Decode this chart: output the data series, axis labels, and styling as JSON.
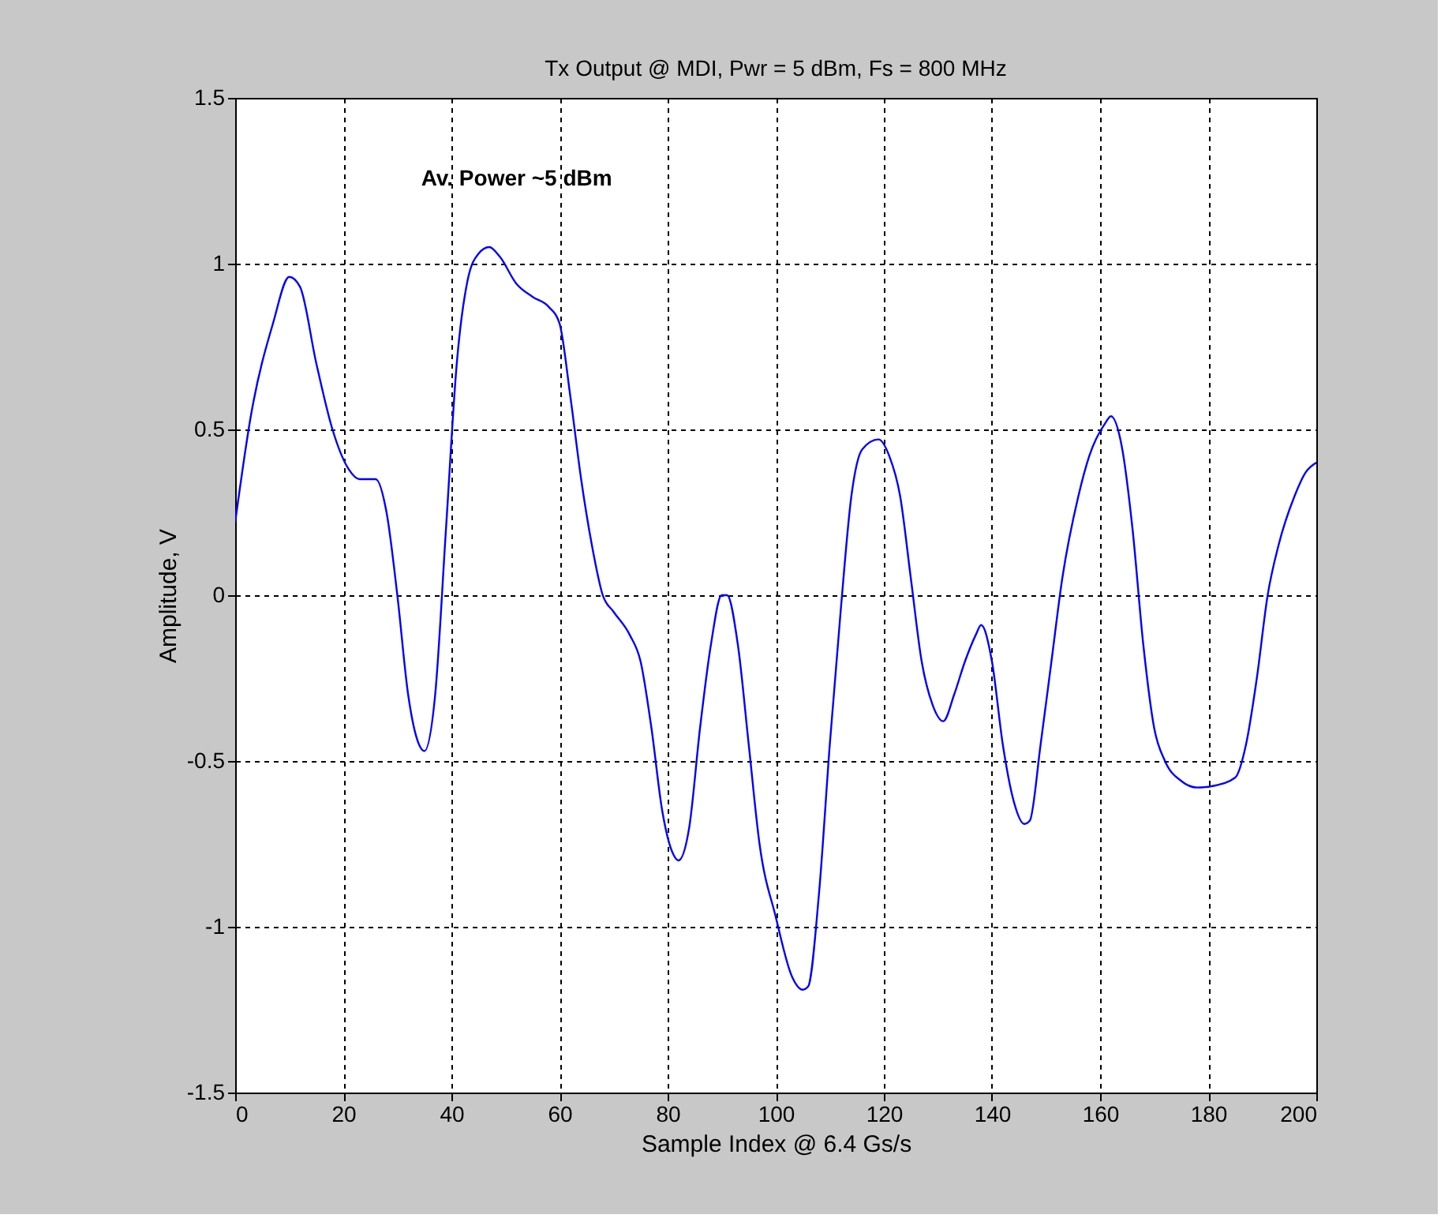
{
  "chart_data": {
    "type": "line",
    "title": "Tx Output @ MDI, Pwr = 5 dBm, Fs = 800 MHz",
    "xlabel": "Sample Index @ 6.4 Gs/s",
    "ylabel": "Amplitude, V",
    "annotations": [
      "Av. Power ~5 dBm"
    ],
    "xlim": [
      0,
      200
    ],
    "xticks": [
      0,
      20,
      40,
      60,
      80,
      100,
      120,
      140,
      160,
      180,
      200
    ],
    "ylim": [
      -1.5,
      1.5
    ],
    "yticks": [
      -1.5,
      -1,
      -0.5,
      0,
      0.5,
      1,
      1.5
    ],
    "grid": true,
    "line_style": "solid",
    "marker": "none",
    "x": [
      0,
      3,
      7,
      10,
      12,
      15,
      18,
      21,
      23,
      26,
      28,
      30,
      32,
      34,
      35,
      37,
      39,
      41,
      43,
      45,
      47,
      49,
      52,
      55,
      58,
      60,
      62,
      64,
      66,
      68,
      70,
      73,
      75,
      77,
      79,
      81,
      82,
      84,
      86,
      88,
      90,
      91,
      93,
      95,
      97,
      100,
      103,
      105,
      106,
      108,
      110,
      112,
      114,
      116,
      119,
      121,
      123,
      125,
      127,
      129,
      131,
      133,
      135,
      137,
      138,
      140,
      142,
      144,
      146,
      147,
      149,
      151,
      153,
      156,
      158,
      161,
      162,
      164,
      166,
      168,
      170,
      172,
      175,
      178,
      181,
      185,
      187,
      189,
      191,
      193,
      196,
      198,
      200
    ],
    "series": [
      {
        "color": "#0000ff",
        "values": [
          0.22,
          0.55,
          0.82,
          0.96,
          0.93,
          0.7,
          0.5,
          0.38,
          0.35,
          0.35,
          0.25,
          0.0,
          -0.3,
          -0.45,
          -0.47,
          -0.3,
          0.2,
          0.7,
          0.95,
          1.03,
          1.05,
          1.02,
          0.94,
          0.9,
          0.87,
          0.82,
          0.6,
          0.35,
          0.15,
          0.0,
          -0.05,
          -0.12,
          -0.2,
          -0.4,
          -0.65,
          -0.78,
          -0.8,
          -0.7,
          -0.4,
          -0.15,
          0.0,
          0.0,
          -0.15,
          -0.45,
          -0.75,
          -0.97,
          -1.15,
          -1.19,
          -1.18,
          -0.9,
          -0.45,
          -0.05,
          0.3,
          0.44,
          0.47,
          0.42,
          0.3,
          0.05,
          -0.2,
          -0.33,
          -0.38,
          -0.3,
          -0.2,
          -0.12,
          -0.09,
          -0.2,
          -0.45,
          -0.62,
          -0.69,
          -0.68,
          -0.45,
          -0.2,
          0.05,
          0.3,
          0.42,
          0.52,
          0.54,
          0.45,
          0.2,
          -0.15,
          -0.4,
          -0.5,
          -0.56,
          -0.58,
          -0.575,
          -0.55,
          -0.45,
          -0.25,
          0.0,
          0.15,
          0.3,
          0.37,
          0.4
        ]
      }
    ]
  }
}
